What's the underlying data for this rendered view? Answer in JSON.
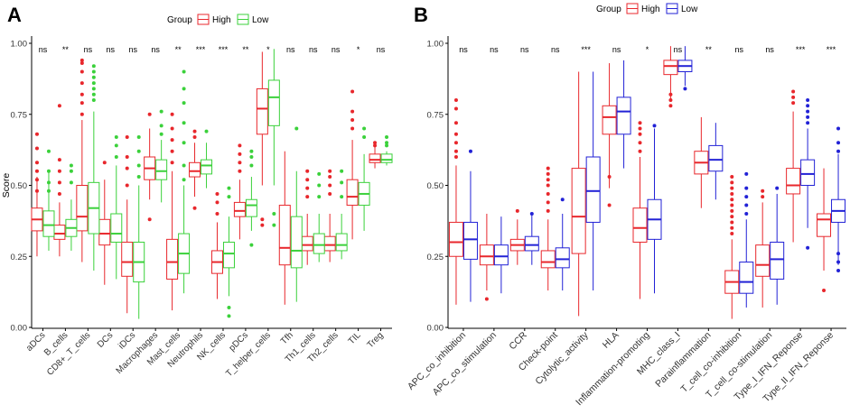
{
  "colors": {
    "high": "#e8272c",
    "low_a": "#3bd13b",
    "low_b": "#2222d6",
    "axis": "#333333"
  },
  "chart_data": [
    {
      "panel": "A",
      "type": "boxplot",
      "ylabel": "Score",
      "ylim": [
        0,
        1
      ],
      "yticks": [
        "0.00",
        "0.25",
        "0.50",
        "0.75",
        "1.00"
      ],
      "legend": {
        "title": "Group",
        "entries": [
          "High",
          "Low"
        ]
      },
      "categories": [
        "aDCs",
        "B_cells",
        "CD8+_T_cells",
        "DCs",
        "iDCs",
        "Macrophages",
        "Mast_cells",
        "Neutrophils",
        "NK_cells",
        "pDCs",
        "T_helper_cells",
        "Tfh",
        "Th1_cells",
        "Th2_cells",
        "TIL",
        "Treg"
      ],
      "significance": [
        "ns",
        "**",
        "ns",
        "ns",
        "ns",
        "ns",
        "**",
        "***",
        "***",
        "**",
        "*",
        "ns",
        "ns",
        "ns",
        "*",
        "ns"
      ],
      "series": [
        {
          "name": "High",
          "boxes": [
            [
              0.25,
              0.34,
              0.38,
              0.42,
              0.53
            ],
            [
              0.25,
              0.31,
              0.33,
              0.36,
              0.44
            ],
            [
              0.23,
              0.34,
              0.39,
              0.5,
              0.73
            ],
            [
              0.15,
              0.29,
              0.33,
              0.38,
              0.52
            ],
            [
              0.05,
              0.18,
              0.23,
              0.3,
              0.45
            ],
            [
              0.45,
              0.52,
              0.56,
              0.6,
              0.7
            ],
            [
              0.06,
              0.17,
              0.23,
              0.31,
              0.55
            ],
            [
              0.46,
              0.53,
              0.55,
              0.58,
              0.65
            ],
            [
              0.1,
              0.19,
              0.23,
              0.27,
              0.37
            ],
            [
              0.31,
              0.39,
              0.41,
              0.44,
              0.52
            ],
            [
              0.5,
              0.68,
              0.77,
              0.84,
              0.97
            ],
            [
              0.08,
              0.22,
              0.28,
              0.43,
              0.62
            ],
            [
              0.22,
              0.27,
              0.29,
              0.32,
              0.4
            ],
            [
              0.23,
              0.27,
              0.29,
              0.32,
              0.4
            ],
            [
              0.31,
              0.43,
              0.46,
              0.52,
              0.66
            ],
            [
              0.56,
              0.58,
              0.59,
              0.61,
              0.64
            ]
          ]
        },
        {
          "name": "Low",
          "boxes": [
            [
              0.27,
              0.32,
              0.36,
              0.41,
              0.55
            ],
            [
              0.27,
              0.32,
              0.35,
              0.38,
              0.45
            ],
            [
              0.2,
              0.33,
              0.42,
              0.51,
              0.76
            ],
            [
              0.17,
              0.3,
              0.33,
              0.4,
              0.57
            ],
            [
              0.03,
              0.16,
              0.23,
              0.3,
              0.5
            ],
            [
              0.44,
              0.52,
              0.55,
              0.59,
              0.66
            ],
            [
              0.12,
              0.19,
              0.26,
              0.33,
              0.5
            ],
            [
              0.49,
              0.54,
              0.57,
              0.59,
              0.65
            ],
            [
              0.11,
              0.21,
              0.26,
              0.3,
              0.39
            ],
            [
              0.34,
              0.39,
              0.43,
              0.45,
              0.53
            ],
            [
              0.5,
              0.71,
              0.81,
              0.87,
              0.98
            ],
            [
              0.09,
              0.21,
              0.27,
              0.39,
              0.55
            ],
            [
              0.23,
              0.26,
              0.29,
              0.33,
              0.4
            ],
            [
              0.24,
              0.27,
              0.29,
              0.33,
              0.4
            ],
            [
              0.34,
              0.43,
              0.47,
              0.51,
              0.61
            ],
            [
              0.57,
              0.58,
              0.59,
              0.61,
              0.62
            ]
          ]
        }
      ],
      "outliers": {
        "High": [
          [
            0.48,
            0.52,
            0.55,
            0.58,
            0.63,
            0.68
          ],
          [
            0.47,
            0.51,
            0.55,
            0.59,
            0.78
          ],
          [
            0.75,
            0.79,
            0.82,
            0.86,
            0.9,
            0.93,
            0.94
          ],
          [
            0.58
          ],
          [
            0.5,
            0.56,
            0.6,
            0.67
          ],
          [
            0.38,
            0.75
          ],
          [
            0.58,
            0.62,
            0.66,
            0.7,
            0.75
          ],
          [
            0.42,
            0.67,
            0.69
          ],
          [
            0.4,
            0.44,
            0.47
          ],
          [
            0.55,
            0.58,
            0.61,
            0.64
          ],
          [
            0.36,
            0.38
          ],
          [],
          [
            0.46,
            0.49,
            0.52,
            0.55
          ],
          [
            0.47,
            0.5,
            0.53,
            0.55
          ],
          [
            0.7,
            0.73,
            0.76,
            0.83
          ],
          [
            0.64,
            0.65
          ]
        ],
        "Low": [
          [
            0.48,
            0.51,
            0.55,
            0.62
          ],
          [
            0.51,
            0.55,
            0.57
          ],
          [
            0.8,
            0.82,
            0.84,
            0.86,
            0.88,
            0.9,
            0.92
          ],
          [
            0.6,
            0.64,
            0.67
          ],
          [
            0.53,
            0.57,
            0.62,
            0.67
          ],
          [
            0.68,
            0.71,
            0.76
          ],
          [
            0.52,
            0.57,
            0.65,
            0.72,
            0.79,
            0.84,
            0.9
          ],
          [
            0.69
          ],
          [
            0.04,
            0.07,
            0.46,
            0.49
          ],
          [
            0.29,
            0.57,
            0.6,
            0.62
          ],
          [
            0.36,
            0.4
          ],
          [
            0.7
          ],
          [
            0.46,
            0.5,
            0.54
          ],
          [
            0.46,
            0.51,
            0.55
          ],
          [
            0.67,
            0.7
          ],
          [
            0.64,
            0.65,
            0.67
          ]
        ]
      }
    },
    {
      "panel": "B",
      "type": "boxplot",
      "ylabel": "",
      "ylim": [
        0,
        1
      ],
      "yticks": [
        "0.00",
        "0.25",
        "0.50",
        "0.75",
        "1.00"
      ],
      "legend": {
        "title": "Group",
        "entries": [
          "High",
          "Low"
        ]
      },
      "categories": [
        "APC_co_inhibition",
        "APC_co_stimulation",
        "CCR",
        "Check-point",
        "Cytolytic_activity",
        "HLA",
        "Inflammation-promoting",
        "MHC_class_I",
        "Parainflammation",
        "T_cell_co-inhibition",
        "T_cell_co-stimulation",
        "Type_I_IFN_Reponse",
        "Type_II_IFN_Reponse"
      ],
      "significance": [
        "ns",
        "ns",
        "ns",
        "ns",
        "***",
        "ns",
        "*",
        "ns",
        "**",
        "ns",
        "ns",
        "***",
        "***"
      ],
      "series": [
        {
          "name": "High",
          "boxes": [
            [
              0.08,
              0.25,
              0.3,
              0.37,
              0.57
            ],
            [
              0.13,
              0.22,
              0.25,
              0.29,
              0.4
            ],
            [
              0.22,
              0.27,
              0.29,
              0.31,
              0.38
            ],
            [
              0.13,
              0.21,
              0.23,
              0.27,
              0.38
            ],
            [
              0.04,
              0.26,
              0.39,
              0.56,
              0.9
            ],
            [
              0.49,
              0.68,
              0.74,
              0.78,
              0.93
            ],
            [
              0.1,
              0.3,
              0.35,
              0.42,
              0.6
            ],
            [
              0.8,
              0.89,
              0.92,
              0.94,
              0.99
            ],
            [
              0.42,
              0.54,
              0.58,
              0.62,
              0.74
            ],
            [
              0.03,
              0.12,
              0.16,
              0.2,
              0.31
            ],
            [
              0.07,
              0.18,
              0.22,
              0.29,
              0.44
            ],
            [
              0.3,
              0.47,
              0.5,
              0.56,
              0.76
            ],
            [
              0.2,
              0.32,
              0.38,
              0.4,
              0.56
            ]
          ]
        },
        {
          "name": "Low",
          "boxes": [
            [
              0.09,
              0.24,
              0.31,
              0.37,
              0.55
            ],
            [
              0.12,
              0.22,
              0.25,
              0.29,
              0.39
            ],
            [
              0.22,
              0.27,
              0.29,
              0.32,
              0.4
            ],
            [
              0.13,
              0.21,
              0.24,
              0.28,
              0.4
            ],
            [
              0.13,
              0.37,
              0.48,
              0.6,
              0.9
            ],
            [
              0.56,
              0.68,
              0.76,
              0.81,
              0.94
            ],
            [
              0.12,
              0.31,
              0.38,
              0.45,
              0.7
            ],
            [
              0.85,
              0.9,
              0.92,
              0.94,
              0.99
            ],
            [
              0.45,
              0.55,
              0.59,
              0.64,
              0.72
            ],
            [
              0.07,
              0.12,
              0.16,
              0.23,
              0.38
            ],
            [
              0.08,
              0.17,
              0.24,
              0.3,
              0.47
            ],
            [
              0.35,
              0.5,
              0.54,
              0.59,
              0.7
            ],
            [
              0.22,
              0.37,
              0.41,
              0.45,
              0.61
            ]
          ]
        }
      ],
      "outliers": {
        "High": [
          [
            0.6,
            0.62,
            0.65,
            0.68,
            0.72,
            0.77,
            0.8
          ],
          [
            0.1
          ],
          [
            0.41
          ],
          [
            0.41,
            0.44,
            0.47,
            0.5,
            0.52,
            0.54,
            0.56
          ],
          [],
          [
            0.43,
            0.53
          ],
          [
            0.62,
            0.65,
            0.68,
            0.7,
            0.72
          ],
          [
            0.78,
            0.8,
            0.82
          ],
          [],
          [
            0.33,
            0.35,
            0.37,
            0.39,
            0.41,
            0.43,
            0.45,
            0.47,
            0.49,
            0.51,
            0.53
          ],
          [
            0.46,
            0.48
          ],
          [
            0.79,
            0.81,
            0.83
          ],
          [
            0.13
          ]
        ],
        "Low": [
          [
            0.62
          ],
          [],
          [
            0.4
          ],
          [
            0.45
          ],
          [],
          [],
          [
            0.71
          ],
          [
            0.84
          ],
          [],
          [
            0.4,
            0.43,
            0.46,
            0.49,
            0.54
          ],
          [
            0.49
          ],
          [
            0.28,
            0.72,
            0.74,
            0.76,
            0.78,
            0.8
          ],
          [
            0.2,
            0.23,
            0.26,
            0.62,
            0.65,
            0.7
          ]
        ]
      }
    }
  ]
}
